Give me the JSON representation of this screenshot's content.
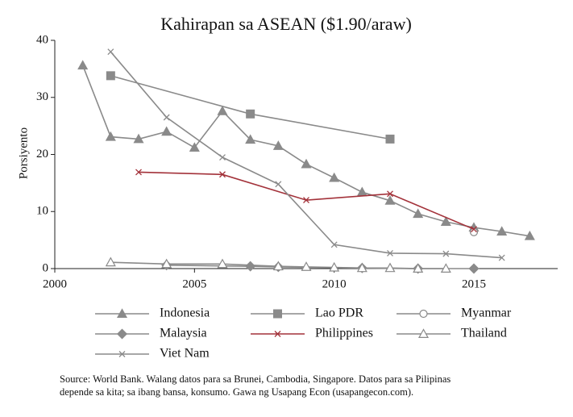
{
  "chart_data": {
    "type": "line",
    "title": "Kahirapan sa ASEAN ($1.90/araw)",
    "y_label": "Porsiyento",
    "xlim": [
      2000,
      2018
    ],
    "xticks": [
      2000,
      2005,
      2010,
      2015
    ],
    "ylim": [
      0,
      40
    ],
    "yticks": [
      0,
      10,
      20,
      30,
      40
    ],
    "series": [
      {
        "name": "Indonesia",
        "color": "#8a8a8a",
        "marker": "triangle",
        "x": [
          2001,
          2002,
          2003,
          2004,
          2005,
          2006,
          2007,
          2008,
          2009,
          2010,
          2011,
          2012,
          2013,
          2014,
          2015,
          2016,
          2017
        ],
        "values": [
          35.6,
          23.1,
          22.7,
          24.0,
          21.2,
          27.6,
          22.6,
          21.5,
          18.3,
          15.9,
          13.4,
          11.9,
          9.6,
          8.2,
          7.2,
          6.5,
          5.7
        ]
      },
      {
        "name": "Lao PDR",
        "color": "#8a8a8a",
        "marker": "square",
        "x": [
          2002,
          2007,
          2012
        ],
        "values": [
          33.8,
          27.1,
          22.7
        ]
      },
      {
        "name": "Myanmar",
        "color": "#8a8a8a",
        "marker": "circle-open",
        "x": [
          2015
        ],
        "values": [
          6.4
        ]
      },
      {
        "name": "Malaysia",
        "color": "#8a8a8a",
        "marker": "diamond",
        "x": [
          2004,
          2007,
          2008,
          2011,
          2013,
          2015
        ],
        "values": [
          0.6,
          0.4,
          0.3,
          0.1,
          0.0,
          0.0
        ]
      },
      {
        "name": "Philippines",
        "color": "#a3323a",
        "marker": "x",
        "x": [
          2003,
          2006,
          2009,
          2012,
          2015
        ],
        "values": [
          16.9,
          16.5,
          12.0,
          13.1,
          6.9
        ]
      },
      {
        "name": "Thailand",
        "color": "#8a8a8a",
        "marker": "triangle-open",
        "x": [
          2002,
          2004,
          2006,
          2008,
          2009,
          2010,
          2011,
          2012,
          2013,
          2014
        ],
        "values": [
          1.1,
          0.8,
          0.8,
          0.4,
          0.3,
          0.2,
          0.1,
          0.1,
          0.0,
          0.0
        ]
      },
      {
        "name": "Viet Nam",
        "color": "#8a8a8a",
        "marker": "x",
        "x": [
          2002,
          2004,
          2006,
          2008,
          2010,
          2012,
          2014,
          2016
        ],
        "values": [
          38.0,
          26.5,
          19.5,
          14.8,
          4.2,
          2.7,
          2.6,
          1.9
        ]
      }
    ],
    "note": [
      "Source: World Bank. Walang datos para sa Brunei, Cambodia, Singapore. Datos para sa Pilipinas",
      "depende sa kita; sa ibang bansa, konsumo. Gawa ng Usapang Econ (usapangecon.com)."
    ]
  }
}
